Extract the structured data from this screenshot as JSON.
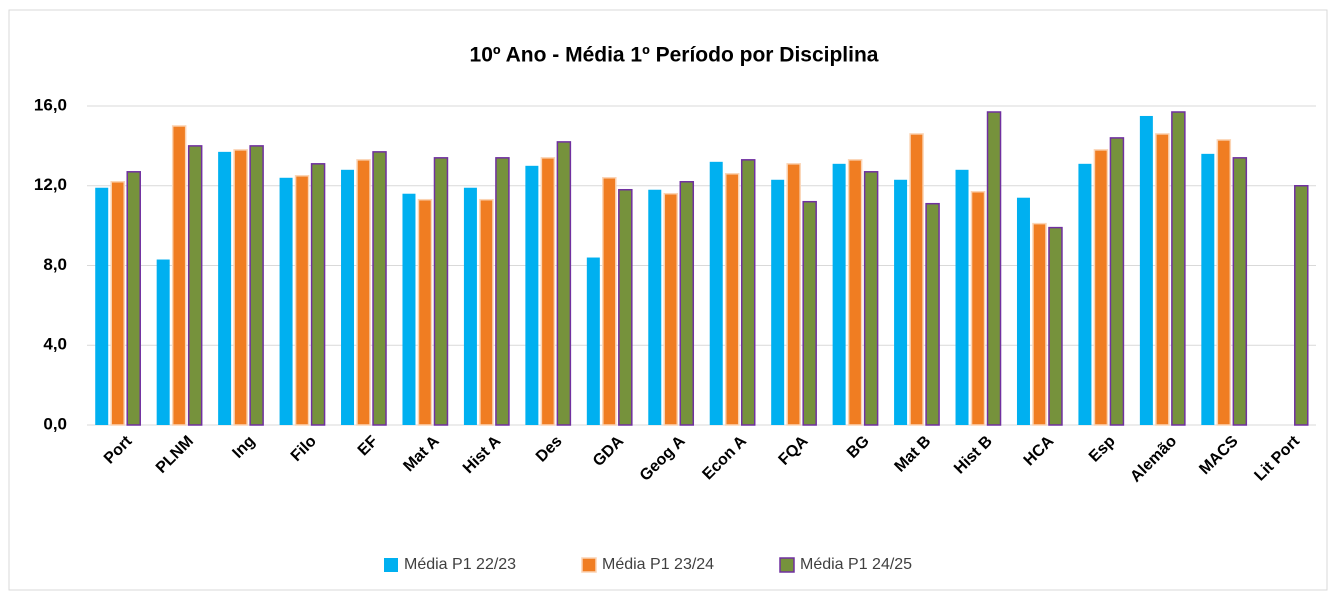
{
  "chart_data": {
    "type": "bar",
    "title": "10º Ano - Média 1º Período por Disciplina",
    "categories": [
      "Port",
      "PLNM",
      "Ing",
      "Filo",
      "EF",
      "Mat A",
      "Hist A",
      "Des",
      "GDA",
      "Geog A",
      "Econ A",
      "FQA",
      "BG",
      "Mat B",
      "Hist B",
      "HCA",
      "Esp",
      "Alemão",
      "MACS",
      "Lit Port"
    ],
    "series": [
      {
        "name": "Média P1 22/23",
        "color": "#00b0f0",
        "values": [
          11.9,
          8.3,
          13.7,
          12.4,
          12.8,
          11.6,
          11.9,
          13.0,
          8.4,
          11.8,
          13.2,
          12.3,
          13.1,
          12.3,
          12.8,
          11.4,
          13.1,
          15.5,
          13.6,
          null
        ]
      },
      {
        "name": "Média P1 23/24",
        "color": "#f07d22",
        "values": [
          12.2,
          15.0,
          13.8,
          12.5,
          13.3,
          11.3,
          11.3,
          13.4,
          12.4,
          11.6,
          12.6,
          13.1,
          13.3,
          14.6,
          11.7,
          10.1,
          13.8,
          14.6,
          14.3,
          null
        ]
      },
      {
        "name": "Média P1 24/25",
        "color": "#76923c",
        "values": [
          12.7,
          14.0,
          14.0,
          13.1,
          13.7,
          13.4,
          13.4,
          14.2,
          11.8,
          12.2,
          13.3,
          11.2,
          12.7,
          11.1,
          15.7,
          9.9,
          14.4,
          15.7,
          13.4,
          12.0
        ]
      }
    ],
    "ylim": [
      0,
      16
    ],
    "yticks": [
      {
        "value": 0,
        "label": "0,0"
      },
      {
        "value": 4,
        "label": "4,0"
      },
      {
        "value": 8,
        "label": "8,0"
      },
      {
        "value": 12,
        "label": "12,0"
      },
      {
        "value": 16,
        "label": "16,0"
      }
    ],
    "grid": true,
    "legend": "bottom"
  }
}
